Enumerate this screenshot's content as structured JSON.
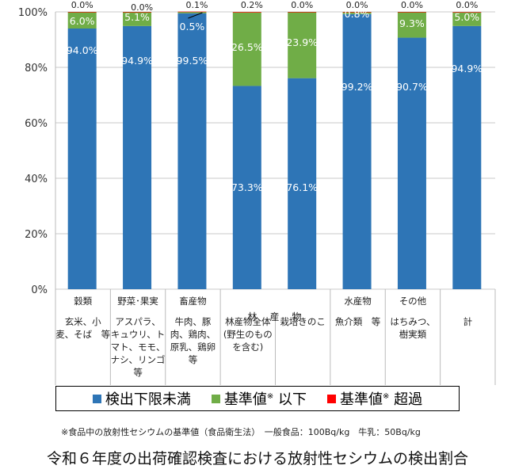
{
  "chart_data": {
    "type": "bar",
    "stacked": true,
    "ylim": [
      0,
      100
    ],
    "yticks": [
      "0%",
      "20%",
      "40%",
      "60%",
      "80%",
      "100%"
    ],
    "grid": true,
    "categories": [
      {
        "head": "穀類",
        "detail": "玄米、小\n麦、そば　等"
      },
      {
        "head": "野菜･果実",
        "detail": "アスパラ、\nキュウリ、ト\nマト、モモ、\nナシ、リンゴ\n等"
      },
      {
        "head": "畜産物",
        "detail": "牛肉、豚\n肉、鶏肉、\n原乳、鶏卵\n等"
      },
      {
        "head": "",
        "detail": "林産物全体\n(野生のもの\nを含む)"
      },
      {
        "head": "",
        "detail": "栽培きのこ"
      },
      {
        "head": "水産物",
        "detail": "魚介類　等"
      },
      {
        "head": "その他",
        "detail": "はちみつ、\n樹実類"
      },
      {
        "head": "",
        "detail": "計"
      }
    ],
    "group_header": "林　産　物",
    "series": [
      {
        "name": "検出下限未満",
        "color": "#2E75B6",
        "values": [
          94.0,
          94.9,
          99.5,
          73.3,
          76.1,
          99.2,
          90.7,
          94.9
        ],
        "labels": [
          "94.0%",
          "94.9%",
          "99.5%",
          "73.3%",
          "76.1%",
          "99.2%",
          "90.7%",
          "94.9%"
        ]
      },
      {
        "name": "基準値※ 以下",
        "color": "#70AD47",
        "values": [
          6.0,
          5.1,
          0.5,
          26.5,
          23.9,
          0.8,
          9.3,
          5.0
        ],
        "labels": [
          "6.0%",
          "5.1%",
          "0.5%",
          "26.5%",
          "23.9%",
          "0.8%",
          "9.3%",
          "5.0%"
        ]
      },
      {
        "name": "基準値※ 超過",
        "color": "#FF0000",
        "values": [
          0.0,
          0.0,
          0.1,
          0.2,
          0.0,
          0.0,
          0.0,
          0.0
        ],
        "labels": [
          "0.0%",
          "0.0%",
          "0.1%",
          "0.2%",
          "0.0%",
          "0.0%",
          "0.0%",
          "0.0%"
        ]
      }
    ]
  },
  "legend": {
    "items": [
      {
        "main": "検出下限未満",
        "sup": "",
        "tail": ""
      },
      {
        "main": "基準値",
        "sup": "※",
        "tail": " 以下"
      },
      {
        "main": "基準値",
        "sup": "※",
        "tail": " 超過"
      }
    ]
  },
  "note": "※食品中の放射性セシウムの基準値（食品衛生法）　一般食品：100Bq/kg　牛乳：50Bq/kg",
  "title": "令和６年度の出荷確認検査における放射性セシウムの検出割合"
}
